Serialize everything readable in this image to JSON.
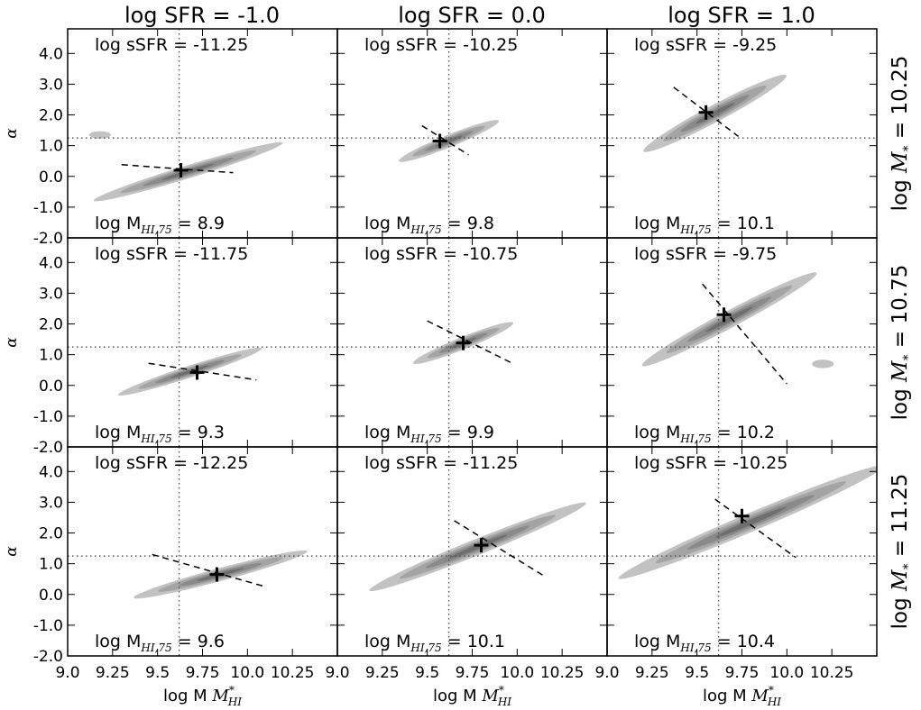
{
  "chart_data": {
    "type": "contour",
    "layout": "3x3 grid of panels",
    "column_titles": [
      "log SFR = -1.0",
      "log SFR = 0.0",
      "log SFR = 1.0"
    ],
    "row_labels": [
      "log M",
      "log M",
      "log M"
    ],
    "row_label_suffix": [
      "= 10.25",
      "= 10.75",
      "= 11.25"
    ],
    "row_label_sub": "*",
    "xlabel": "log M",
    "xlabel_sup": "*",
    "xlabel_sub": "HI",
    "ylabel": "α",
    "xlim": [
      9.0,
      10.5
    ],
    "ylim": [
      -2.0,
      4.8
    ],
    "xticks": [
      9.0,
      9.25,
      9.5,
      9.75,
      10.0,
      10.25
    ],
    "xtick_labels": [
      "9.0",
      "9.25",
      "9.5",
      "9.75",
      "10.0",
      "10.25"
    ],
    "yticks": [
      4.0,
      3.0,
      2.0,
      1.0,
      0.0,
      -1.0,
      -2.0
    ],
    "ytick_labels": [
      "4.0",
      "3.0",
      "2.0",
      "1.0",
      "0.0",
      "-1.0",
      "-2.0"
    ],
    "reference_lines": {
      "x": 9.62,
      "y": 1.25,
      "style": "dotted"
    },
    "contour_fill_colors": [
      "#c2c2c2",
      "#a4a4a4",
      "#8a8a8a",
      "#6f6f6f"
    ],
    "panels": [
      {
        "row": 0,
        "col": 0,
        "ssfr_label": "log sSFR = -11.25",
        "mhi_prefix": "log M",
        "mhi_sub": "HI,75",
        "mhi_value": "= 8.9",
        "peak": [
          9.63,
          0.2
        ],
        "contour": {
          "cx": 9.67,
          "cy": 0.15,
          "a": 0.55,
          "b": 0.42,
          "angle": -17
        },
        "satellite": {
          "x": 9.18,
          "y": 1.35,
          "a": 0.06,
          "b": 0.12
        },
        "fit": {
          "x0": 9.3,
          "y0": 0.38,
          "x1": 9.92,
          "y1": 0.12
        }
      },
      {
        "row": 0,
        "col": 1,
        "ssfr_label": "log sSFR = -10.25",
        "mhi_prefix": "log M",
        "mhi_sub": "HI,75",
        "mhi_value": "= 9.8",
        "peak": [
          9.57,
          1.15
        ],
        "contour": {
          "cx": 9.62,
          "cy": 1.15,
          "a": 0.3,
          "b": 0.4,
          "angle": -22
        },
        "fit": {
          "x0": 9.47,
          "y0": 1.65,
          "x1": 9.73,
          "y1": 0.7
        }
      },
      {
        "row": 0,
        "col": 2,
        "ssfr_label": "log sSFR = -9.25",
        "mhi_prefix": "log M",
        "mhi_sub": "HI,75",
        "mhi_value": "= 10.1",
        "peak": [
          9.55,
          2.08
        ],
        "contour": {
          "cx": 9.6,
          "cy": 2.05,
          "a": 0.45,
          "b": 0.55,
          "angle": -28
        },
        "fit": {
          "x0": 9.37,
          "y0": 2.9,
          "x1": 9.73,
          "y1": 1.3
        }
      },
      {
        "row": 1,
        "col": 0,
        "ssfr_label": "log sSFR = -11.75",
        "mhi_prefix": "log M",
        "mhi_sub": "HI,75",
        "mhi_value": "= 9.3",
        "peak": [
          9.72,
          0.42
        ],
        "contour": {
          "cx": 9.68,
          "cy": 0.45,
          "a": 0.42,
          "b": 0.38,
          "angle": -18
        },
        "fit": {
          "x0": 9.45,
          "y0": 0.72,
          "x1": 10.05,
          "y1": 0.18
        }
      },
      {
        "row": 1,
        "col": 1,
        "ssfr_label": "log sSFR = -10.75",
        "mhi_prefix": "log M",
        "mhi_sub": "HI,75",
        "mhi_value": "= 9.9",
        "peak": [
          9.7,
          1.38
        ],
        "contour": {
          "cx": 9.7,
          "cy": 1.38,
          "a": 0.3,
          "b": 0.4,
          "angle": -22
        },
        "fit": {
          "x0": 9.5,
          "y0": 2.1,
          "x1": 9.98,
          "y1": 0.7
        }
      },
      {
        "row": 1,
        "col": 2,
        "ssfr_label": "log sSFR = -9.75",
        "mhi_prefix": "log M",
        "mhi_sub": "HI,75",
        "mhi_value": "= 10.2",
        "peak": [
          9.65,
          2.3
        ],
        "contour": {
          "cx": 9.68,
          "cy": 2.15,
          "a": 0.55,
          "b": 0.55,
          "angle": -28
        },
        "satellite": {
          "x": 10.2,
          "y": 0.7,
          "a": 0.06,
          "b": 0.14
        },
        "fit": {
          "x0": 9.53,
          "y0": 3.3,
          "x1": 10.0,
          "y1": 0.05
        }
      },
      {
        "row": 2,
        "col": 0,
        "ssfr_label": "log sSFR = -12.25",
        "mhi_prefix": "log M",
        "mhi_sub": "HI,75",
        "mhi_value": "= 9.6",
        "peak": [
          9.83,
          0.65
        ],
        "contour": {
          "cx": 9.85,
          "cy": 0.65,
          "a": 0.5,
          "b": 0.42,
          "angle": -15
        },
        "fit": {
          "x0": 9.47,
          "y0": 1.3,
          "x1": 10.1,
          "y1": 0.25
        }
      },
      {
        "row": 2,
        "col": 1,
        "ssfr_label": "log sSFR = -11.25",
        "mhi_prefix": "log M",
        "mhi_sub": "HI,75",
        "mhi_value": "= 10.1",
        "peak": [
          9.8,
          1.6
        ],
        "contour": {
          "cx": 9.78,
          "cy": 1.55,
          "a": 0.65,
          "b": 0.52,
          "angle": -22
        },
        "fit": {
          "x0": 9.65,
          "y0": 2.4,
          "x1": 10.15,
          "y1": 0.6
        }
      },
      {
        "row": 2,
        "col": 2,
        "ssfr_label": "log sSFR = -10.25",
        "mhi_prefix": "log M",
        "mhi_sub": "HI,75",
        "mhi_value": "= 10.4",
        "peak": [
          9.75,
          2.55
        ],
        "contour": {
          "cx": 9.8,
          "cy": 2.35,
          "a": 0.8,
          "b": 0.6,
          "angle": -23
        },
        "fit": {
          "x0": 9.6,
          "y0": 3.1,
          "x1": 10.05,
          "y1": 1.2
        }
      }
    ]
  }
}
